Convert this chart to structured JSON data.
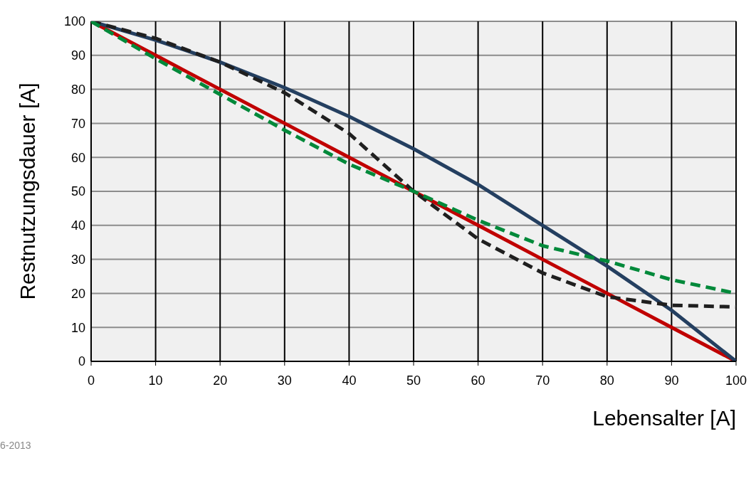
{
  "chart_data": {
    "type": "line",
    "xlabel": "Lebensalter [A]",
    "ylabel": "Restnutzungsdauer [A]",
    "annotations": [
      "6-2013"
    ],
    "x": [
      0,
      10,
      20,
      30,
      40,
      50,
      60,
      70,
      80,
      90,
      100
    ],
    "xlim": [
      0,
      100
    ],
    "xticks": [
      0,
      10,
      20,
      30,
      40,
      50,
      60,
      70,
      80,
      90,
      100
    ],
    "ylim": [
      0,
      100
    ],
    "yticks": [
      0,
      10,
      20,
      30,
      40,
      50,
      60,
      70,
      80,
      90,
      100
    ],
    "grid": true,
    "marker": "none",
    "series": [
      {
        "color": "#c00000",
        "line_style": "solid",
        "values": [
          100,
          90,
          80,
          70,
          60,
          50,
          40,
          30,
          20,
          10,
          0
        ]
      },
      {
        "color": "#243f60",
        "line_style": "solid",
        "values": [
          100,
          94.5,
          88,
          80.5,
          72,
          62.5,
          52,
          40,
          28,
          15,
          0
        ]
      },
      {
        "color": "#1f1f1f",
        "line_style": "dashed",
        "values": [
          100,
          95,
          88,
          79,
          67,
          50,
          36,
          26,
          19,
          16.5,
          16
        ]
      },
      {
        "color": "#00893a",
        "line_style": "dashed",
        "values": [
          100,
          89,
          78.5,
          68,
          58,
          50,
          41.5,
          34,
          29.5,
          24,
          20
        ]
      }
    ]
  }
}
